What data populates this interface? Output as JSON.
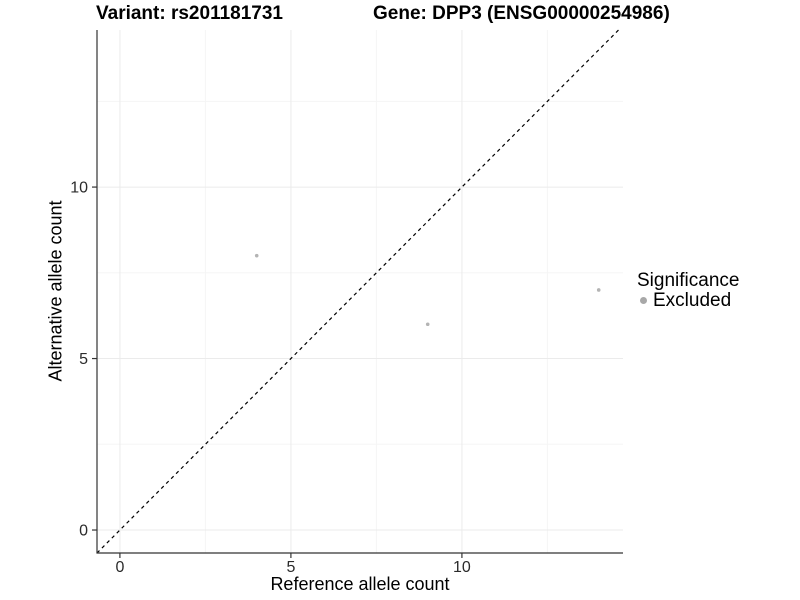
{
  "chart_data": {
    "type": "scatter",
    "title_left": "Variant: rs201181731",
    "title_right": "Gene: DPP3 (ENSG00000254986)",
    "xlabel": "Reference allele count",
    "ylabel": "Alternative allele count",
    "xlim": [
      -0.67,
      14.71
    ],
    "ylim": [
      -0.67,
      14.58
    ],
    "xticks": [
      0,
      5,
      10
    ],
    "yticks": [
      0,
      5,
      10
    ],
    "xticks_minor": [
      2.5,
      7.5,
      12.5
    ],
    "yticks_minor": [
      2.5,
      7.5,
      12.5
    ],
    "grid": "on",
    "series": [
      {
        "name": "Excluded",
        "color": "#b4b4b4",
        "point_radius_px": 1.8,
        "points": [
          [
            4,
            8
          ],
          [
            9,
            6
          ],
          [
            14,
            7
          ]
        ]
      }
    ],
    "reference_line": {
      "equation": "y = x",
      "style": "dashed",
      "color": "#000000"
    },
    "legend": {
      "title": "Significance",
      "position": "right",
      "items": [
        {
          "label": "Excluded",
          "marker": "circle",
          "color": "#a8a8a8"
        }
      ]
    }
  },
  "style": {
    "background": "#ffffff",
    "grid_major": "#ebebeb",
    "grid_minor": "#f5f5f5",
    "axis_line": "#333333",
    "tick_label_color": "#2b2b2b",
    "text_color": "#000000"
  }
}
